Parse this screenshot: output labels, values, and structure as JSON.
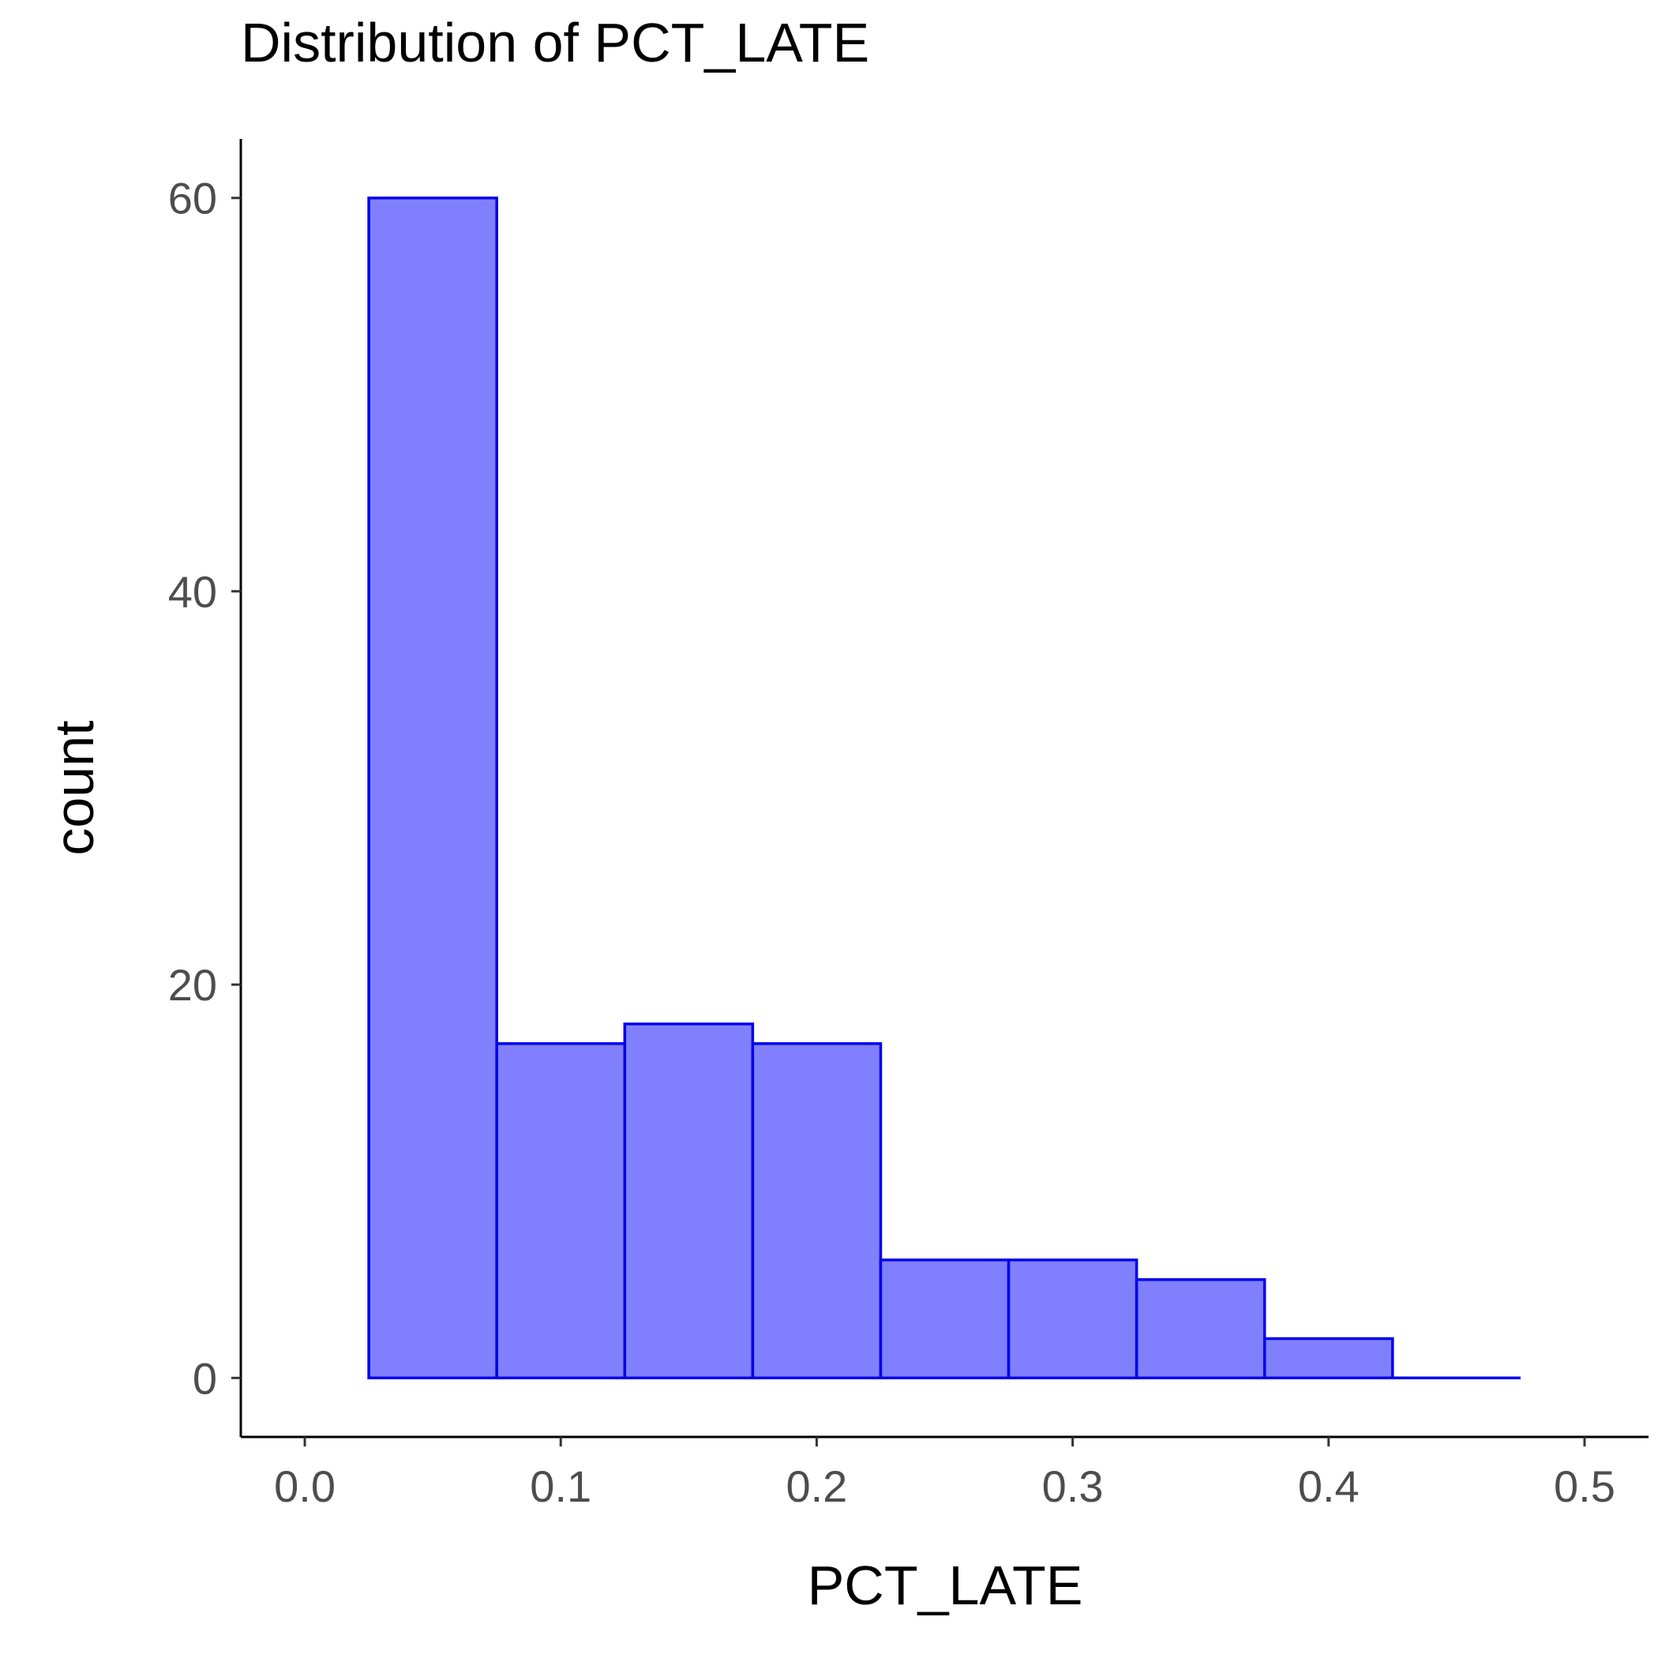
{
  "chart_data": {
    "type": "bar",
    "title": "Distribution of PCT_LATE",
    "xlabel": "PCT_LATE",
    "ylabel": "count",
    "xlim": [
      -0.025,
      0.525
    ],
    "ylim": [
      -3,
      63
    ],
    "x_ticks": [
      {
        "value": 0.0,
        "label": "0.0"
      },
      {
        "value": 0.1,
        "label": "0.1"
      },
      {
        "value": 0.2,
        "label": "0.2"
      },
      {
        "value": 0.3,
        "label": "0.3"
      },
      {
        "value": 0.4,
        "label": "0.4"
      },
      {
        "value": 0.5,
        "label": "0.5"
      }
    ],
    "y_ticks": [
      {
        "value": 0,
        "label": "0"
      },
      {
        "value": 20,
        "label": "20"
      },
      {
        "value": 40,
        "label": "40"
      },
      {
        "value": 60,
        "label": "60"
      }
    ],
    "bins": [
      {
        "x0": 0.025,
        "x1": 0.075,
        "count": 60
      },
      {
        "x0": 0.075,
        "x1": 0.125,
        "count": 17
      },
      {
        "x0": 0.125,
        "x1": 0.175,
        "count": 18
      },
      {
        "x0": 0.175,
        "x1": 0.225,
        "count": 17
      },
      {
        "x0": 0.225,
        "x1": 0.275,
        "count": 6
      },
      {
        "x0": 0.275,
        "x1": 0.325,
        "count": 6
      },
      {
        "x0": 0.325,
        "x1": 0.375,
        "count": 5
      },
      {
        "x0": 0.375,
        "x1": 0.425,
        "count": 2
      },
      {
        "x0": 0.425,
        "x1": 0.475,
        "count": 0
      }
    ],
    "fill_color": "#8080ff",
    "outline_color": "#0000ee",
    "grid": false,
    "legend": "none"
  }
}
